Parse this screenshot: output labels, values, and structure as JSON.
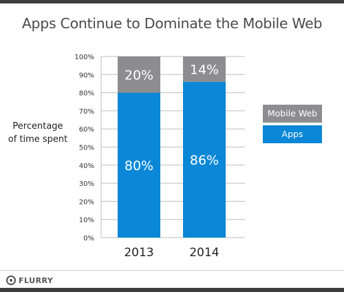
{
  "title": "Apps Continue to Dominate the Mobile Web",
  "ylabel_line1": "Percentage",
  "ylabel_line2": "of time spent",
  "legend": [
    {
      "label": "Mobile Web",
      "color": "#8d8d8f"
    },
    {
      "label": "Apps",
      "color": "#0a87d6"
    }
  ],
  "footer": {
    "logo_text": "FLURRY"
  },
  "chart_data": {
    "type": "bar",
    "stacked": true,
    "categories": [
      "2013",
      "2014"
    ],
    "series": [
      {
        "name": "Apps",
        "values": [
          80,
          86
        ],
        "color": "#0a87d6"
      },
      {
        "name": "Mobile Web",
        "values": [
          20,
          14
        ],
        "color": "#8d8d8f"
      }
    ],
    "data_labels": [
      [
        "80%",
        "86%"
      ],
      [
        "20%",
        "14%"
      ]
    ],
    "ylim": [
      0,
      100
    ],
    "yticks": [
      0,
      10,
      20,
      30,
      40,
      50,
      60,
      70,
      80,
      90,
      100
    ],
    "ytick_labels": [
      "0%",
      "10%",
      "20%",
      "30%",
      "40%",
      "50%",
      "60%",
      "70%",
      "80%",
      "90%",
      "100%"
    ],
    "grid": true
  }
}
